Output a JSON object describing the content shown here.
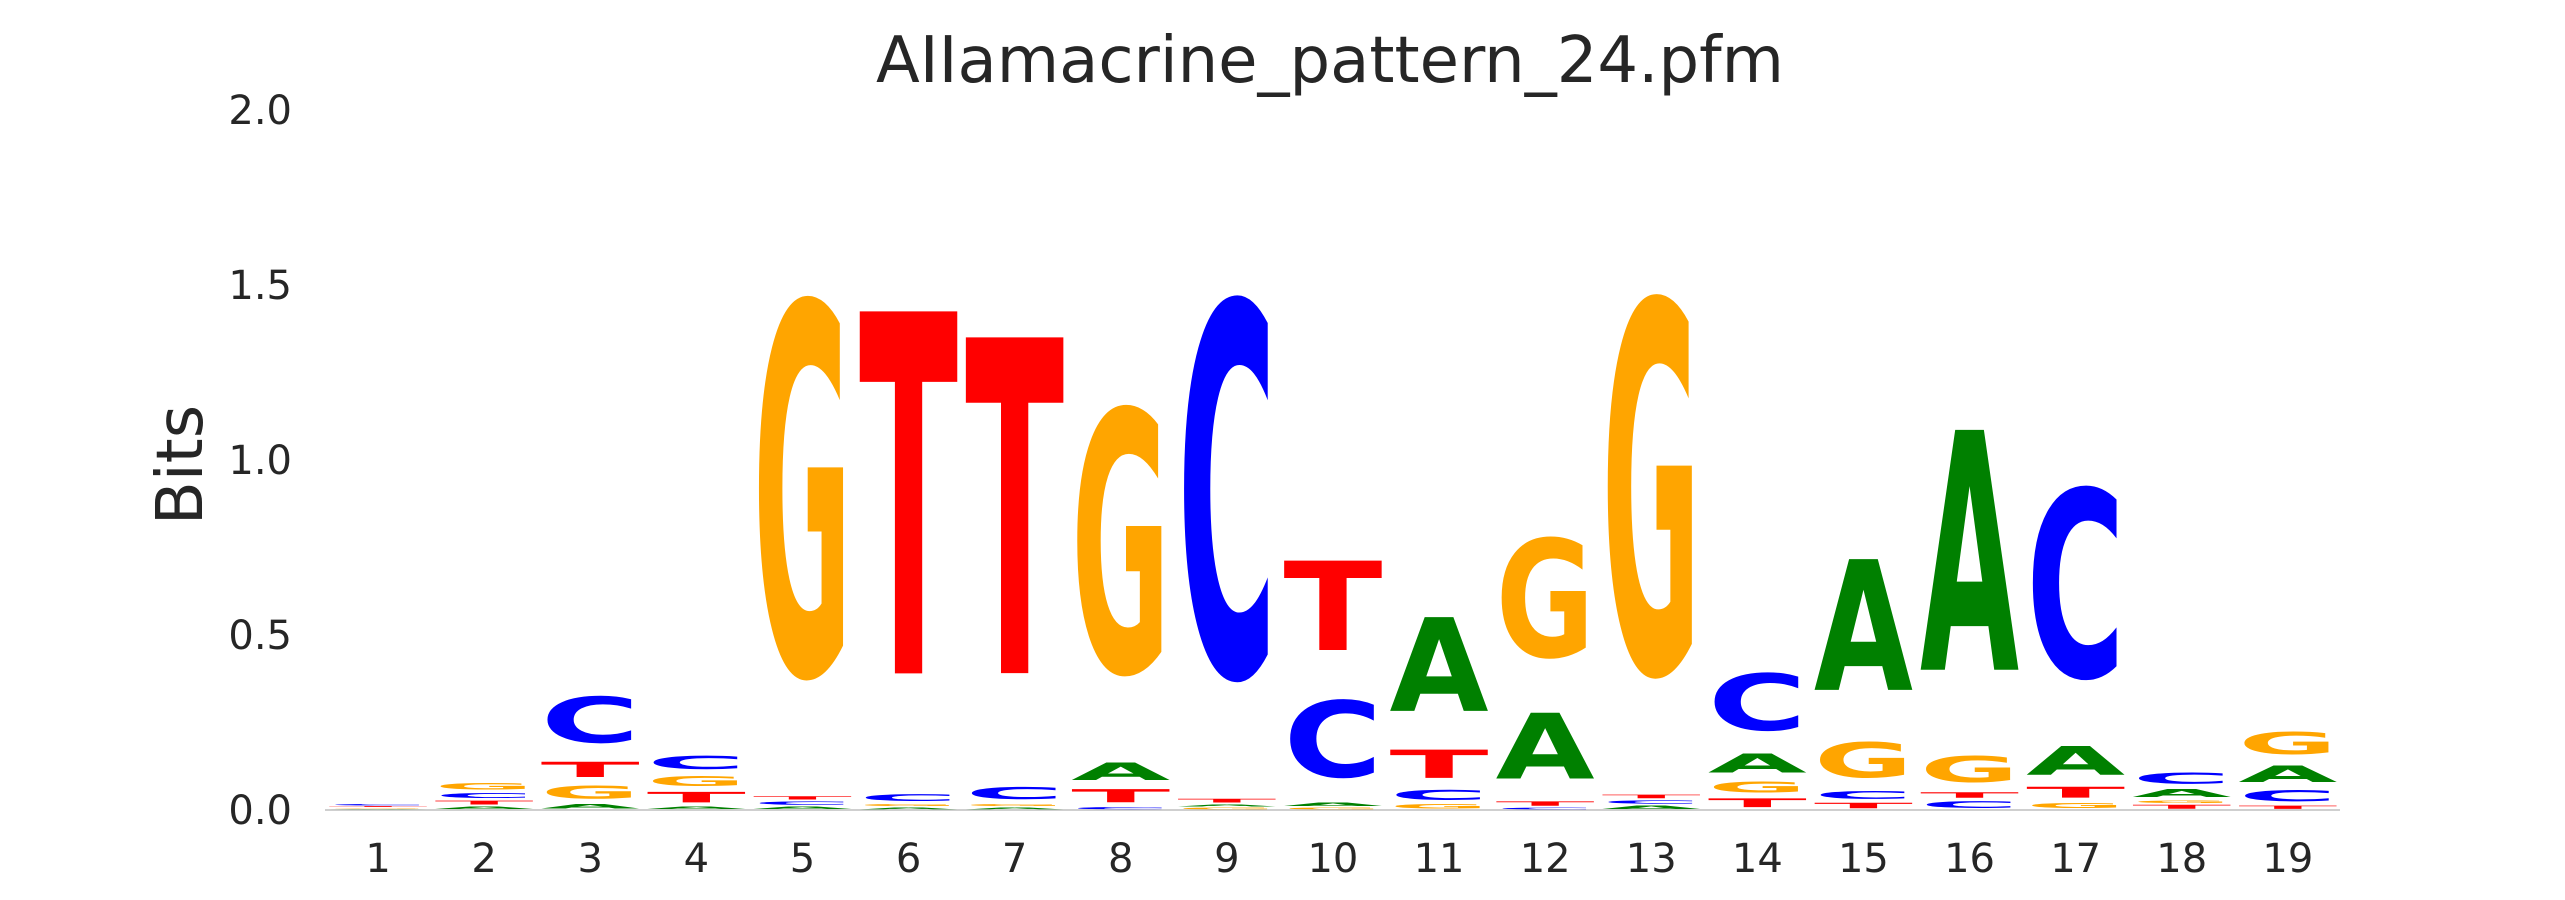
{
  "chart_data": {
    "type": "sequence-logo",
    "title": "AIIamacrine_pattern_24.pfm",
    "ylabel": "Bits",
    "xlabel": "",
    "ylim": [
      0,
      2.0
    ],
    "yticks": [
      "0.0",
      "0.5",
      "1.0",
      "1.5",
      "2.0"
    ],
    "grid": false,
    "colors": {
      "A": "#008000",
      "C": "#0000ff",
      "G": "#ffa500",
      "T": "#ff0000"
    },
    "positions": [
      {
        "label": "1",
        "stack": [
          [
            "A",
            0.004
          ],
          [
            "G",
            0.004
          ],
          [
            "T",
            0.004
          ],
          [
            "C",
            0.006
          ]
        ]
      },
      {
        "label": "2",
        "stack": [
          [
            "A",
            0.012
          ],
          [
            "T",
            0.018
          ],
          [
            "C",
            0.022
          ],
          [
            "G",
            0.03
          ]
        ]
      },
      {
        "label": "3",
        "stack": [
          [
            "A",
            0.02
          ],
          [
            "G",
            0.06
          ],
          [
            "T",
            0.07
          ],
          [
            "C",
            0.21
          ]
        ]
      },
      {
        "label": "4",
        "stack": [
          [
            "A",
            0.012
          ],
          [
            "T",
            0.048
          ],
          [
            "G",
            0.045
          ],
          [
            "C",
            0.06
          ]
        ]
      },
      {
        "label": "5",
        "stack": [
          [
            "A",
            0.012
          ],
          [
            "C",
            0.015
          ],
          [
            "T",
            0.015
          ],
          [
            "G",
            1.7
          ]
        ]
      },
      {
        "label": "6",
        "stack": [
          [
            "A",
            0.01
          ],
          [
            "G",
            0.01
          ],
          [
            "C",
            0.03
          ],
          [
            "T",
            1.66
          ]
        ]
      },
      {
        "label": "7",
        "stack": [
          [
            "A",
            0.01
          ],
          [
            "G",
            0.01
          ],
          [
            "C",
            0.055
          ],
          [
            "T",
            1.54
          ]
        ]
      },
      {
        "label": "8",
        "stack": [
          [
            "C",
            0.01
          ],
          [
            "T",
            0.06
          ],
          [
            "A",
            0.08
          ],
          [
            "G",
            1.2
          ]
        ]
      },
      {
        "label": "9",
        "stack": [
          [
            "G",
            0.008
          ],
          [
            "A",
            0.01
          ],
          [
            "T",
            0.017
          ],
          [
            "C",
            1.71
          ]
        ]
      },
      {
        "label": "10",
        "stack": [
          [
            "G",
            0.008
          ],
          [
            "A",
            0.015
          ],
          [
            "C",
            0.35
          ],
          [
            "T",
            0.41
          ]
        ]
      },
      {
        "label": "11",
        "stack": [
          [
            "G",
            0.02
          ],
          [
            "C",
            0.045
          ],
          [
            "T",
            0.13
          ],
          [
            "A",
            0.43
          ]
        ]
      },
      {
        "label": "12",
        "stack": [
          [
            "C",
            0.008
          ],
          [
            "T",
            0.02
          ],
          [
            "A",
            0.3
          ],
          [
            "G",
            0.54
          ]
        ]
      },
      {
        "label": "13",
        "stack": [
          [
            "A",
            0.015
          ],
          [
            "C",
            0.015
          ],
          [
            "T",
            0.017
          ],
          [
            "G",
            1.7
          ]
        ]
      },
      {
        "label": "14",
        "stack": [
          [
            "T",
            0.04
          ],
          [
            "G",
            0.05
          ],
          [
            "A",
            0.085
          ],
          [
            "C",
            0.26
          ]
        ]
      },
      {
        "label": "15",
        "stack": [
          [
            "T",
            0.025
          ],
          [
            "C",
            0.035
          ],
          [
            "G",
            0.16
          ],
          [
            "A",
            0.6
          ]
        ]
      },
      {
        "label": "16",
        "stack": [
          [
            "C",
            0.03
          ],
          [
            "T",
            0.025
          ],
          [
            "G",
            0.12
          ],
          [
            "A",
            1.1
          ]
        ]
      },
      {
        "label": "17",
        "stack": [
          [
            "G",
            0.025
          ],
          [
            "T",
            0.05
          ],
          [
            "A",
            0.13
          ],
          [
            "C",
            0.86
          ]
        ]
      },
      {
        "label": "18",
        "stack": [
          [
            "T",
            0.018
          ],
          [
            "G",
            0.012
          ],
          [
            "A",
            0.035
          ],
          [
            "C",
            0.05
          ]
        ]
      },
      {
        "label": "19",
        "stack": [
          [
            "T",
            0.015
          ],
          [
            "C",
            0.05
          ],
          [
            "A",
            0.075
          ],
          [
            "G",
            0.1
          ]
        ]
      }
    ]
  }
}
